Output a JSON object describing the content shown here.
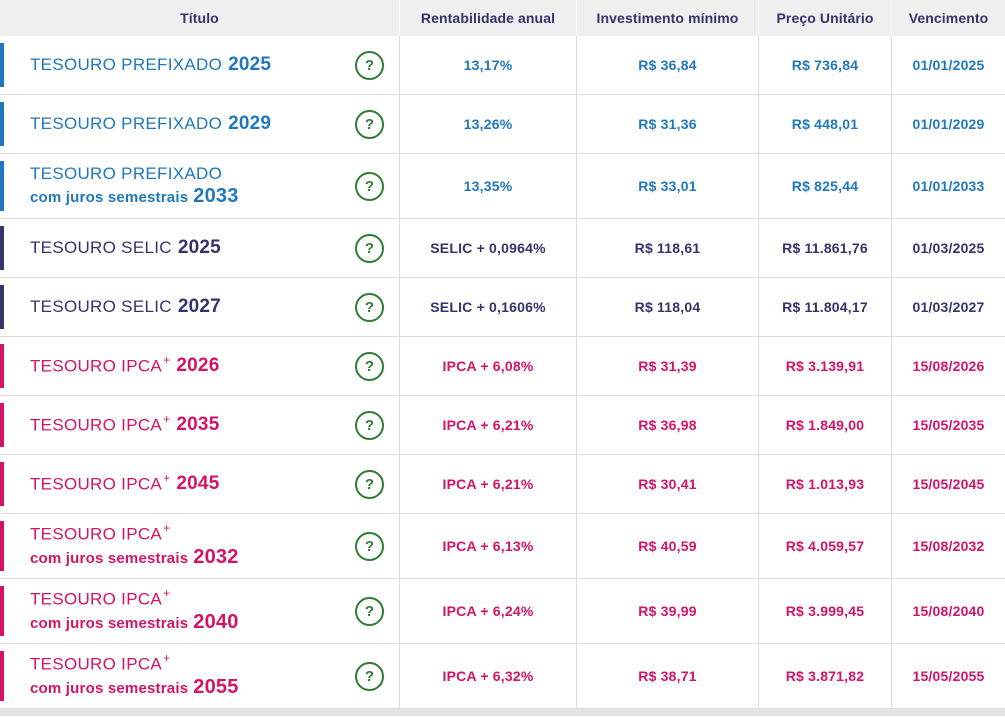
{
  "table": {
    "columns": [
      "Título",
      "Rentabilidade anual",
      "Investimento mínimo",
      "Preço Unitário",
      "Vencimento"
    ],
    "help_label": "?",
    "rows": [
      {
        "name": "TESOURO PREFIXADO",
        "sup": "",
        "subtitle": "",
        "year": "2025",
        "theme": "blue",
        "rate": "13,17%",
        "min_investment": "R$ 36,84",
        "unit_price": "R$ 736,84",
        "maturity": "01/01/2025"
      },
      {
        "name": "TESOURO PREFIXADO",
        "sup": "",
        "subtitle": "",
        "year": "2029",
        "theme": "blue",
        "rate": "13,26%",
        "min_investment": "R$ 31,36",
        "unit_price": "R$ 448,01",
        "maturity": "01/01/2029"
      },
      {
        "name": "TESOURO PREFIXADO",
        "sup": "",
        "subtitle": "com juros semestrais",
        "year": "2033",
        "theme": "blue",
        "rate": "13,35%",
        "min_investment": "R$ 33,01",
        "unit_price": "R$ 825,44",
        "maturity": "01/01/2033"
      },
      {
        "name": "TESOURO SELIC",
        "sup": "",
        "subtitle": "",
        "year": "2025",
        "theme": "navy",
        "rate": "SELIC + 0,0964%",
        "min_investment": "R$ 118,61",
        "unit_price": "R$ 11.861,76",
        "maturity": "01/03/2025"
      },
      {
        "name": "TESOURO SELIC",
        "sup": "",
        "subtitle": "",
        "year": "2027",
        "theme": "navy",
        "rate": "SELIC + 0,1606%",
        "min_investment": "R$ 118,04",
        "unit_price": "R$ 11.804,17",
        "maturity": "01/03/2027"
      },
      {
        "name": "TESOURO IPCA",
        "sup": "+",
        "subtitle": "",
        "year": "2026",
        "theme": "pink",
        "rate": "IPCA + 6,08%",
        "min_investment": "R$ 31,39",
        "unit_price": "R$ 3.139,91",
        "maturity": "15/08/2026"
      },
      {
        "name": "TESOURO IPCA",
        "sup": "+",
        "subtitle": "",
        "year": "2035",
        "theme": "pink",
        "rate": "IPCA + 6,21%",
        "min_investment": "R$ 36,98",
        "unit_price": "R$ 1.849,00",
        "maturity": "15/05/2035"
      },
      {
        "name": "TESOURO IPCA",
        "sup": "+",
        "subtitle": "",
        "year": "2045",
        "theme": "pink",
        "rate": "IPCA + 6,21%",
        "min_investment": "R$ 30,41",
        "unit_price": "R$ 1.013,93",
        "maturity": "15/05/2045"
      },
      {
        "name": "TESOURO IPCA",
        "sup": "+",
        "subtitle": "com juros semestrais",
        "year": "2032",
        "theme": "pink",
        "rate": "IPCA + 6,13%",
        "min_investment": "R$ 40,59",
        "unit_price": "R$ 4.059,57",
        "maturity": "15/08/2032"
      },
      {
        "name": "TESOURO IPCA",
        "sup": "+",
        "subtitle": "com juros semestrais",
        "year": "2040",
        "theme": "pink",
        "rate": "IPCA + 6,24%",
        "min_investment": "R$ 39,99",
        "unit_price": "R$ 3.999,45",
        "maturity": "15/08/2040"
      },
      {
        "name": "TESOURO IPCA",
        "sup": "+",
        "subtitle": "com juros semestrais",
        "year": "2055",
        "theme": "pink",
        "rate": "IPCA + 6,32%",
        "min_investment": "R$ 38,71",
        "unit_price": "R$ 3.871,82",
        "maturity": "15/05/2055"
      }
    ]
  },
  "colors": {
    "blue": "#1f78bd",
    "navy": "#35336c",
    "pink": "#d41367",
    "green": "#2e7d32",
    "header_bg": "#efefef",
    "divider": "#dcdcdc",
    "strip": "#e3e3e4"
  }
}
